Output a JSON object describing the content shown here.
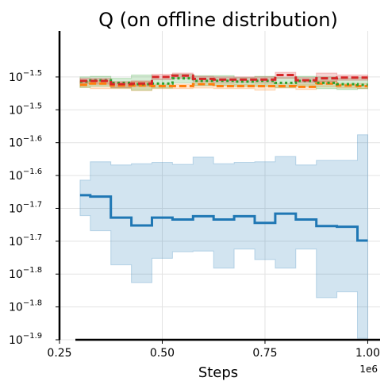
{
  "chart_data": {
    "type": "line",
    "title": "Q (on offline distribution)",
    "xlabel": "Steps",
    "ylabel": "",
    "x_offset_label": "1e6",
    "xlim": [
      0.25,
      1.03
    ],
    "ylim": [
      -1.9,
      -1.43
    ],
    "y_scale": "log",
    "grid": true,
    "legend": "none",
    "x_ticks": [
      "0.25",
      "0.50",
      "0.75",
      "1.00"
    ],
    "x_tick_values": [
      0.25,
      0.5,
      0.75,
      1.0
    ],
    "y_ticks": [
      {
        "base": "10",
        "exp": "−1.9",
        "v": -1.9
      },
      {
        "base": "10",
        "exp": "−1.8",
        "v": -1.85
      },
      {
        "base": "10",
        "exp": "−1.8",
        "v": -1.8
      },
      {
        "base": "10",
        "exp": "−1.7",
        "v": -1.75
      },
      {
        "base": "10",
        "exp": "−1.7",
        "v": -1.7
      },
      {
        "base": "10",
        "exp": "−1.6",
        "v": -1.65
      },
      {
        "base": "10",
        "exp": "−1.6",
        "v": -1.6
      },
      {
        "base": "10",
        "exp": "−1.5",
        "v": -1.55
      },
      {
        "base": "10",
        "exp": "−1.5",
        "v": -1.5
      }
    ],
    "series": [
      {
        "color": "#1f77b4",
        "dash": "solid",
        "x": [
          0.3,
          0.35,
          0.4,
          0.45,
          0.5,
          0.55,
          0.6,
          0.65,
          0.7,
          0.75,
          0.8,
          0.85,
          0.9,
          0.95,
          1.0
        ],
        "y": [
          -1.68,
          -1.682,
          -1.714,
          -1.726,
          -1.714,
          -1.717,
          -1.712,
          -1.717,
          -1.712,
          -1.722,
          -1.708,
          -1.717,
          -1.727,
          -1.728,
          -1.749
        ],
        "lower": [
          -1.711,
          -1.734,
          -1.786,
          -1.813,
          -1.776,
          -1.766,
          -1.765,
          -1.791,
          -1.762,
          -1.778,
          -1.791,
          -1.762,
          -1.836,
          -1.827,
          -1.898
        ],
        "upper": [
          -1.657,
          -1.629,
          -1.634,
          -1.632,
          -1.63,
          -1.633,
          -1.622,
          -1.632,
          -1.63,
          -1.629,
          -1.621,
          -1.634,
          -1.627,
          -1.627,
          -1.588
        ]
      },
      {
        "color": "#ff7f0e",
        "dash": "dashed",
        "x": [
          0.3,
          0.35,
          0.4,
          0.45,
          0.5,
          0.55,
          0.6,
          0.65,
          0.7,
          0.75,
          0.8,
          0.85,
          0.9,
          0.95,
          1.0
        ],
        "y": [
          -1.512,
          -1.51,
          -1.513,
          -1.513,
          -1.514,
          -1.514,
          -1.511,
          -1.514,
          -1.514,
          -1.514,
          -1.514,
          -1.515,
          -1.51,
          -1.513,
          -1.514
        ],
        "lower": [
          -1.516,
          -1.518,
          -1.518,
          -1.521,
          -1.518,
          -1.518,
          -1.517,
          -1.518,
          -1.518,
          -1.52,
          -1.517,
          -1.519,
          -1.515,
          -1.517,
          -1.518
        ],
        "upper": [
          -1.507,
          -1.505,
          -1.509,
          -1.507,
          -1.511,
          -1.511,
          -1.509,
          -1.51,
          -1.511,
          -1.51,
          -1.51,
          -1.511,
          -1.506,
          -1.51,
          -1.51
        ]
      },
      {
        "color": "#2ca02c",
        "dash": "dotted",
        "x": [
          0.3,
          0.35,
          0.4,
          0.45,
          0.5,
          0.55,
          0.6,
          0.65,
          0.7,
          0.75,
          0.8,
          0.85,
          0.9,
          0.95,
          1.0
        ],
        "y": [
          -1.507,
          -1.505,
          -1.509,
          -1.511,
          -1.51,
          -1.502,
          -1.506,
          -1.506,
          -1.507,
          -1.506,
          -1.509,
          -1.506,
          -1.509,
          -1.511,
          -1.512
        ],
        "lower": [
          -1.516,
          -1.514,
          -1.517,
          -1.52,
          -1.517,
          -1.509,
          -1.513,
          -1.513,
          -1.514,
          -1.514,
          -1.516,
          -1.514,
          -1.518,
          -1.519,
          -1.518
        ],
        "upper": [
          -1.5,
          -1.499,
          -1.502,
          -1.497,
          -1.503,
          -1.496,
          -1.498,
          -1.498,
          -1.501,
          -1.499,
          -1.501,
          -1.499,
          -1.5,
          -1.502,
          -1.501
        ]
      },
      {
        "color": "#d62728",
        "dash": "dashed",
        "x": [
          0.3,
          0.35,
          0.4,
          0.45,
          0.5,
          0.55,
          0.6,
          0.65,
          0.7,
          0.75,
          0.8,
          0.85,
          0.9,
          0.95,
          1.0
        ],
        "y": [
          -1.506,
          -1.506,
          -1.511,
          -1.51,
          -1.5,
          -1.498,
          -1.503,
          -1.504,
          -1.504,
          -1.504,
          -1.497,
          -1.505,
          -1.502,
          -1.501,
          -1.501
        ],
        "lower": [
          -1.51,
          -1.511,
          -1.516,
          -1.514,
          -1.504,
          -1.502,
          -1.507,
          -1.508,
          -1.508,
          -1.508,
          -1.502,
          -1.509,
          -1.507,
          -1.505,
          -1.505
        ],
        "upper": [
          -1.502,
          -1.502,
          -1.507,
          -1.506,
          -1.496,
          -1.494,
          -1.499,
          -1.5,
          -1.5,
          -1.5,
          -1.493,
          -1.501,
          -1.494,
          -1.497,
          -1.497
        ]
      }
    ]
  }
}
